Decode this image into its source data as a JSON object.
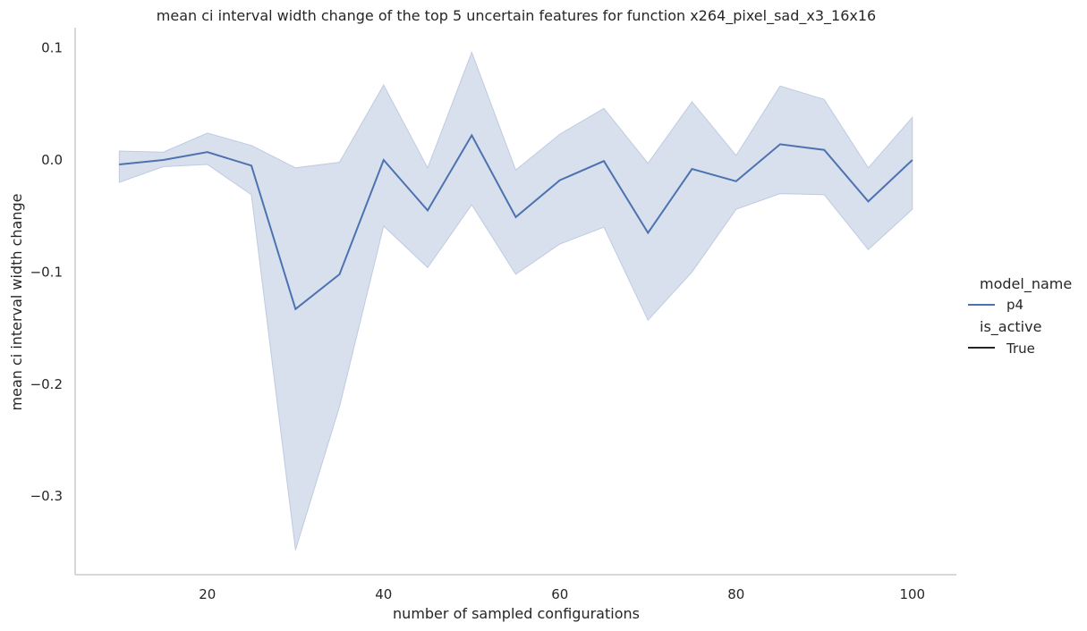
{
  "chart_data": {
    "type": "line",
    "title": "mean ci interval width change of the top 5 uncertain features for function x264_pixel_sad_x3_16x16",
    "xlabel": "number of sampled configurations",
    "ylabel": "mean ci interval width change",
    "xlim": [
      5,
      105
    ],
    "ylim": [
      -0.37,
      0.118
    ],
    "xticks": [
      20,
      40,
      60,
      80,
      100
    ],
    "xtick_labels": [
      "20",
      "40",
      "60",
      "80",
      "100"
    ],
    "yticks": [
      0.1,
      0.0,
      -0.1,
      -0.2,
      -0.3
    ],
    "ytick_labels": [
      "0.1",
      "0.0",
      "−0.1",
      "−0.2",
      "−0.3"
    ],
    "grid": false,
    "legend_placement": "right",
    "series": [
      {
        "name": "p4",
        "color": "#4c72b0",
        "band_color": "#b4c2dc",
        "x": [
          10,
          15,
          20,
          25,
          30,
          35,
          40,
          45,
          50,
          55,
          60,
          65,
          70,
          75,
          80,
          85,
          90,
          95,
          100
        ],
        "mean": [
          -0.004,
          0.0,
          0.007,
          -0.005,
          -0.133,
          -0.102,
          0.0,
          -0.045,
          0.022,
          -0.051,
          -0.018,
          -0.001,
          -0.065,
          -0.008,
          -0.019,
          0.014,
          0.009,
          -0.037,
          0.0
        ],
        "lower": [
          -0.02,
          -0.006,
          -0.004,
          -0.031,
          -0.348,
          -0.22,
          -0.059,
          -0.096,
          -0.04,
          -0.102,
          -0.075,
          -0.06,
          -0.143,
          -0.1,
          -0.044,
          -0.03,
          -0.031,
          -0.08,
          -0.044
        ],
        "upper": [
          0.008,
          0.007,
          0.024,
          0.013,
          -0.007,
          -0.002,
          0.067,
          -0.007,
          0.096,
          -0.009,
          0.023,
          0.046,
          -0.003,
          0.052,
          0.004,
          0.066,
          0.054,
          -0.007,
          0.038
        ]
      }
    ],
    "legend": {
      "title1": "model_name",
      "item1": "p4",
      "title2": "is_active",
      "item2": "True",
      "item2_color": "#262626"
    }
  }
}
